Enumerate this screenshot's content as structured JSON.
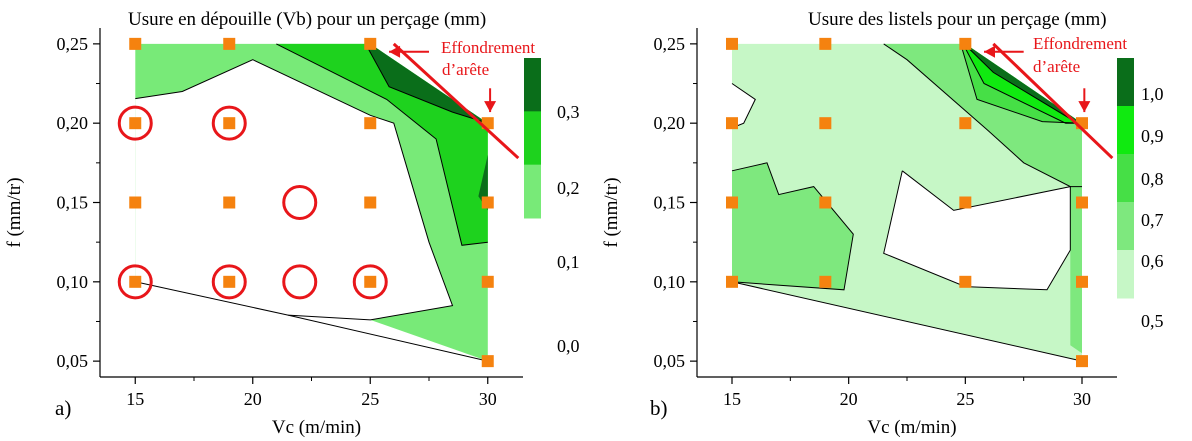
{
  "chart_data": [
    {
      "type": "heatmap",
      "panel_label": "a)",
      "title": "Usure en dépouille (Vb) pour un perçage (mm)",
      "xlabel": "Vc (m/min)",
      "ylabel": "f (mm/tr)",
      "xlim": [
        13.5,
        31.5
      ],
      "ylim": [
        0.04,
        0.26
      ],
      "xticks": [
        "15",
        "20",
        "25",
        "30"
      ],
      "xtick_values": [
        15,
        20,
        25,
        30
      ],
      "yticks": [
        "0,05",
        "0,10",
        "0,15",
        "0,20",
        "0,25"
      ],
      "ytick_values": [
        0.05,
        0.1,
        0.15,
        0.2,
        0.25
      ],
      "legend": {
        "labels": [
          "0,3",
          "0,2",
          "0,1",
          "0,0"
        ],
        "levels": [
          0.3,
          0.2,
          0.1,
          0.0
        ],
        "colors": [
          "#0a6e1a",
          "#1ed21e",
          "#78ea78"
        ]
      },
      "annotation": {
        "line1": "Effondrement",
        "line2": "d’arête",
        "color": "#e8161a"
      },
      "sample_points": [
        {
          "x": 15,
          "y": 0.25
        },
        {
          "x": 19,
          "y": 0.25
        },
        {
          "x": 25,
          "y": 0.25
        },
        {
          "x": 15,
          "y": 0.2
        },
        {
          "x": 19,
          "y": 0.2
        },
        {
          "x": 25,
          "y": 0.2
        },
        {
          "x": 30,
          "y": 0.2
        },
        {
          "x": 15,
          "y": 0.15
        },
        {
          "x": 19,
          "y": 0.15
        },
        {
          "x": 25,
          "y": 0.15
        },
        {
          "x": 30,
          "y": 0.15
        },
        {
          "x": 15,
          "y": 0.1
        },
        {
          "x": 19,
          "y": 0.1
        },
        {
          "x": 25,
          "y": 0.1
        },
        {
          "x": 30,
          "y": 0.1
        },
        {
          "x": 30,
          "y": 0.05
        }
      ],
      "circled_points": [
        {
          "x": 15,
          "y": 0.2
        },
        {
          "x": 19,
          "y": 0.2
        },
        {
          "x": 22,
          "y": 0.15
        },
        {
          "x": 15,
          "y": 0.1
        },
        {
          "x": 19,
          "y": 0.1
        },
        {
          "x": 22,
          "y": 0.1
        },
        {
          "x": 25,
          "y": 0.1
        }
      ],
      "contour_bands": [
        {
          "color": "#78ea78",
          "polygon": [
            [
              15,
              0.25
            ],
            [
              25,
              0.25
            ],
            [
              30,
              0.2
            ],
            [
              30,
              0.05
            ],
            [
              25,
              0.076
            ],
            [
              21.5,
              0.079
            ],
            [
              15,
              0.1
            ],
            [
              15,
              0.2155
            ]
          ]
        },
        {
          "color": "#ffffff",
          "polygon": [
            [
              15,
              0.1
            ],
            [
              21.5,
              0.079
            ],
            [
              25,
              0.076
            ],
            [
              28.5,
              0.085
            ],
            [
              27.5,
              0.125
            ],
            [
              26.5,
              0.175
            ],
            [
              26,
              0.2
            ],
            [
              25,
              0.205
            ],
            [
              20,
              0.24
            ],
            [
              17,
              0.22
            ],
            [
              15,
              0.2155
            ]
          ]
        },
        {
          "color": "#1ed21e",
          "polygon": [
            [
              21,
              0.25
            ],
            [
              25,
              0.25
            ],
            [
              30,
              0.2
            ],
            [
              30,
              0.125
            ],
            [
              28.9,
              0.123
            ],
            [
              27.8,
              0.19
            ],
            [
              25.7,
              0.215
            ]
          ]
        },
        {
          "color": "#0a6e1a",
          "polygon": [
            [
              24.8,
              0.25
            ],
            [
              25,
              0.25
            ],
            [
              30,
              0.2
            ],
            [
              28.5,
              0.207
            ],
            [
              25.8,
              0.223
            ]
          ]
        },
        {
          "color": "#0a6e1a",
          "polygon": [
            [
              30,
              0.18
            ],
            [
              30,
              0.145
            ],
            [
              29.6,
              0.154
            ]
          ]
        }
      ],
      "boundary_lines": [
        [
          [
            15,
            0.2155
          ],
          [
            17,
            0.22
          ],
          [
            20,
            0.24
          ],
          [
            25,
            0.205
          ],
          [
            26,
            0.2
          ],
          [
            26.5,
            0.175
          ],
          [
            27.5,
            0.125
          ],
          [
            28.5,
            0.085
          ],
          [
            25,
            0.076
          ],
          [
            21.5,
            0.079
          ],
          [
            15,
            0.1
          ]
        ],
        [
          [
            21,
            0.25
          ],
          [
            25.7,
            0.215
          ],
          [
            27.8,
            0.19
          ],
          [
            28.9,
            0.123
          ],
          [
            30,
            0.125
          ]
        ],
        [
          [
            24.8,
            0.25
          ],
          [
            25.8,
            0.223
          ],
          [
            28.5,
            0.207
          ],
          [
            30,
            0.2
          ]
        ],
        [
          [
            21.5,
            0.079
          ],
          [
            30,
            0.05
          ]
        ]
      ],
      "red_line": [
        [
          26,
          0.25
        ],
        [
          31.3,
          0.178
        ]
      ],
      "arrows": [
        {
          "from": [
            27.5,
            0.245
          ],
          "to": [
            25.8,
            0.245
          ]
        },
        {
          "from": [
            30.1,
            0.222
          ],
          "to": [
            30.1,
            0.207
          ]
        }
      ]
    },
    {
      "type": "heatmap",
      "panel_label": "b)",
      "title": "Usure des listels pour un perçage (mm)",
      "xlabel": "Vc (m/min)",
      "ylabel": "f (mm/tr)",
      "xlim": [
        13.5,
        31.5
      ],
      "ylim": [
        0.04,
        0.26
      ],
      "xticks": [
        "15",
        "20",
        "25",
        "30"
      ],
      "xtick_values": [
        15,
        20,
        25,
        30
      ],
      "yticks": [
        "0,05",
        "0,10",
        "0,15",
        "0,20",
        "0,25"
      ],
      "ytick_values": [
        0.05,
        0.1,
        0.15,
        0.2,
        0.25
      ],
      "legend": {
        "labels": [
          "1,0",
          "0,9",
          "0,8",
          "0,7",
          "0,6",
          "0,5"
        ],
        "levels": [
          1.0,
          0.9,
          0.8,
          0.7,
          0.6,
          0.5
        ],
        "colors": [
          "#0a6e1a",
          "#10ea10",
          "#46df46",
          "#7ee87e",
          "#c6f7c6"
        ]
      },
      "annotation": {
        "line1": "Effondrement",
        "line2": "d’arête",
        "color": "#e8161a"
      },
      "sample_points": [
        {
          "x": 15,
          "y": 0.25
        },
        {
          "x": 19,
          "y": 0.25
        },
        {
          "x": 25,
          "y": 0.25
        },
        {
          "x": 15,
          "y": 0.2
        },
        {
          "x": 19,
          "y": 0.2
        },
        {
          "x": 25,
          "y": 0.2
        },
        {
          "x": 30,
          "y": 0.2
        },
        {
          "x": 15,
          "y": 0.15
        },
        {
          "x": 19,
          "y": 0.15
        },
        {
          "x": 25,
          "y": 0.15
        },
        {
          "x": 30,
          "y": 0.15
        },
        {
          "x": 15,
          "y": 0.1
        },
        {
          "x": 19,
          "y": 0.1
        },
        {
          "x": 25,
          "y": 0.1
        },
        {
          "x": 30,
          "y": 0.1
        },
        {
          "x": 30,
          "y": 0.05
        }
      ],
      "contour_bands": [
        {
          "color": "#c6f7c6",
          "polygon": [
            [
              15,
              0.25
            ],
            [
              25,
              0.25
            ],
            [
              30,
              0.2
            ],
            [
              30,
              0.05
            ],
            [
              15,
              0.1
            ]
          ]
        },
        {
          "color": "#ffffff",
          "polygon": [
            [
              15,
              0.225
            ],
            [
              16,
              0.215
            ],
            [
              15.5,
              0.2
            ],
            [
              15,
              0.197
            ]
          ]
        },
        {
          "color": "#7ee87e",
          "polygon": [
            [
              15,
              0.17
            ],
            [
              16.5,
              0.175
            ],
            [
              17,
              0.155
            ],
            [
              18.5,
              0.16
            ],
            [
              20.2,
              0.13
            ],
            [
              19.8,
              0.095
            ],
            [
              15,
              0.1
            ]
          ]
        },
        {
          "color": "#7ee87e",
          "polygon": [
            [
              21.5,
              0.25
            ],
            [
              25,
              0.25
            ],
            [
              30,
              0.2
            ],
            [
              30,
              0.055
            ],
            [
              29.5,
              0.06
            ],
            [
              29.5,
              0.16
            ],
            [
              27.5,
              0.175
            ],
            [
              26,
              0.195
            ],
            [
              22.5,
              0.24
            ]
          ]
        },
        {
          "color": "#ffffff",
          "polygon": [
            [
              22.3,
              0.17
            ],
            [
              24.5,
              0.145
            ],
            [
              29.5,
              0.16
            ],
            [
              29.5,
              0.12
            ],
            [
              28.5,
              0.095
            ],
            [
              25,
              0.097
            ],
            [
              21.5,
              0.118
            ]
          ]
        },
        {
          "color": "#46df46",
          "polygon": [
            [
              24.8,
              0.25
            ],
            [
              25,
              0.25
            ],
            [
              30,
              0.2
            ],
            [
              28.3,
              0.201
            ],
            [
              25.5,
              0.215
            ]
          ]
        },
        {
          "color": "#10ea10",
          "polygon": [
            [
              24.9,
              0.25
            ],
            [
              25,
              0.25
            ],
            [
              30,
              0.2
            ],
            [
              29.3,
              0.2
            ],
            [
              25.8,
              0.225
            ]
          ]
        },
        {
          "color": "#0a6e1a",
          "polygon": [
            [
              24.95,
              0.25
            ],
            [
              25,
              0.25
            ],
            [
              30,
              0.2
            ],
            [
              29.7,
              0.201
            ],
            [
              26.2,
              0.232
            ]
          ]
        }
      ],
      "boundary_lines": [
        [
          [
            15,
            0.225
          ],
          [
            16,
            0.215
          ],
          [
            15.5,
            0.2
          ],
          [
            15,
            0.197
          ]
        ],
        [
          [
            15,
            0.17
          ],
          [
            16.5,
            0.175
          ],
          [
            17,
            0.155
          ],
          [
            18.5,
            0.16
          ],
          [
            20.2,
            0.13
          ],
          [
            19.8,
            0.095
          ],
          [
            15,
            0.1
          ]
        ],
        [
          [
            21.5,
            0.25
          ],
          [
            22.5,
            0.24
          ],
          [
            26,
            0.195
          ],
          [
            27.5,
            0.175
          ],
          [
            29.5,
            0.16
          ],
          [
            30,
            0.16
          ]
        ],
        [
          [
            22.3,
            0.17
          ],
          [
            24.5,
            0.145
          ],
          [
            29.5,
            0.16
          ],
          [
            29.5,
            0.12
          ],
          [
            28.5,
            0.095
          ],
          [
            25,
            0.097
          ],
          [
            21.5,
            0.118
          ],
          [
            22.3,
            0.17
          ]
        ],
        [
          [
            24.8,
            0.25
          ],
          [
            25.5,
            0.215
          ],
          [
            28.3,
            0.201
          ],
          [
            30,
            0.2
          ]
        ],
        [
          [
            24.9,
            0.25
          ],
          [
            25.8,
            0.225
          ],
          [
            29.3,
            0.2
          ],
          [
            30,
            0.2
          ]
        ],
        [
          [
            24.95,
            0.25
          ],
          [
            26.2,
            0.232
          ],
          [
            29.7,
            0.201
          ],
          [
            30,
            0.2
          ]
        ],
        [
          [
            15,
            0.1
          ],
          [
            30,
            0.05
          ]
        ]
      ],
      "red_line": [
        [
          26.2,
          0.25
        ],
        [
          31.3,
          0.178
        ]
      ],
      "arrows": [
        {
          "from": [
            27.5,
            0.245
          ],
          "to": [
            25.8,
            0.245
          ]
        },
        {
          "from": [
            30.1,
            0.222
          ],
          "to": [
            30.1,
            0.207
          ]
        }
      ]
    }
  ]
}
